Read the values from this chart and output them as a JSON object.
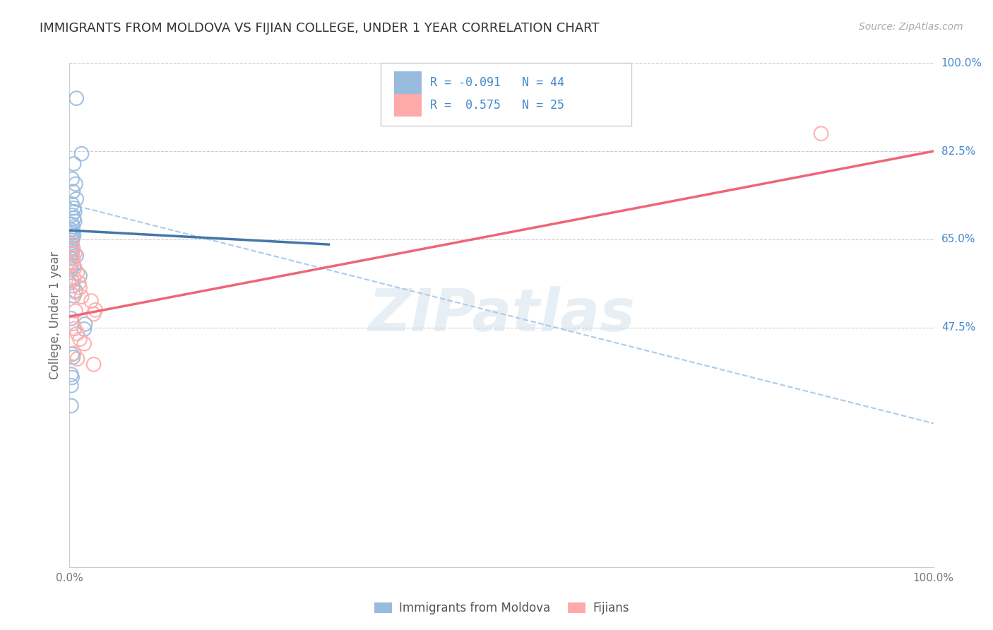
{
  "title": "IMMIGRANTS FROM MOLDOVA VS FIJIAN COLLEGE, UNDER 1 YEAR CORRELATION CHART",
  "source": "Source: ZipAtlas.com",
  "ylabel": "College, Under 1 year",
  "xlim": [
    0.0,
    1.0
  ],
  "ylim": [
    0.0,
    1.0
  ],
  "ytick_labels_right": [
    "100.0%",
    "82.5%",
    "65.0%",
    "47.5%"
  ],
  "ytick_positions_right": [
    1.0,
    0.825,
    0.65,
    0.475
  ],
  "color_blue": "#99BBDD",
  "color_pink": "#FFAAAA",
  "color_blue_line": "#4477AA",
  "color_pink_line": "#EE6677",
  "color_dashed": "#AACCEE",
  "title_color": "#333333",
  "right_tick_color": "#4488CC",
  "blue_scatter": [
    [
      0.008,
      0.93
    ],
    [
      0.014,
      0.82
    ],
    [
      0.005,
      0.8
    ],
    [
      0.003,
      0.77
    ],
    [
      0.007,
      0.76
    ],
    [
      0.004,
      0.745
    ],
    [
      0.008,
      0.73
    ],
    [
      0.003,
      0.72
    ],
    [
      0.005,
      0.712
    ],
    [
      0.006,
      0.705
    ],
    [
      0.003,
      0.698
    ],
    [
      0.005,
      0.692
    ],
    [
      0.006,
      0.686
    ],
    [
      0.003,
      0.68
    ],
    [
      0.004,
      0.675
    ],
    [
      0.002,
      0.669
    ],
    [
      0.003,
      0.663
    ],
    [
      0.005,
      0.658
    ],
    [
      0.004,
      0.653
    ],
    [
      0.003,
      0.648
    ],
    [
      0.002,
      0.643
    ],
    [
      0.003,
      0.638
    ],
    [
      0.004,
      0.633
    ],
    [
      0.002,
      0.628
    ],
    [
      0.003,
      0.623
    ],
    [
      0.008,
      0.618
    ],
    [
      0.002,
      0.612
    ],
    [
      0.003,
      0.605
    ],
    [
      0.005,
      0.598
    ],
    [
      0.002,
      0.59
    ],
    [
      0.012,
      0.578
    ],
    [
      0.003,
      0.568
    ],
    [
      0.004,
      0.558
    ],
    [
      0.007,
      0.548
    ],
    [
      0.005,
      0.538
    ],
    [
      0.002,
      0.493
    ],
    [
      0.018,
      0.482
    ],
    [
      0.017,
      0.472
    ],
    [
      0.003,
      0.422
    ],
    [
      0.004,
      0.416
    ],
    [
      0.002,
      0.382
    ],
    [
      0.003,
      0.376
    ],
    [
      0.002,
      0.36
    ],
    [
      0.002,
      0.32
    ]
  ],
  "pink_scatter": [
    [
      0.003,
      0.64
    ],
    [
      0.004,
      0.63
    ],
    [
      0.006,
      0.622
    ],
    [
      0.004,
      0.613
    ],
    [
      0.003,
      0.604
    ],
    [
      0.006,
      0.594
    ],
    [
      0.009,
      0.584
    ],
    [
      0.005,
      0.574
    ],
    [
      0.011,
      0.564
    ],
    [
      0.012,
      0.554
    ],
    [
      0.007,
      0.545
    ],
    [
      0.014,
      0.536
    ],
    [
      0.025,
      0.528
    ],
    [
      0.007,
      0.508
    ],
    [
      0.028,
      0.502
    ],
    [
      0.004,
      0.483
    ],
    [
      0.006,
      0.473
    ],
    [
      0.009,
      0.463
    ],
    [
      0.012,
      0.452
    ],
    [
      0.017,
      0.443
    ],
    [
      0.005,
      0.424
    ],
    [
      0.009,
      0.413
    ],
    [
      0.028,
      0.402
    ],
    [
      0.03,
      0.51
    ],
    [
      0.87,
      0.86
    ]
  ],
  "blue_line_x": [
    0.0,
    0.3
  ],
  "blue_line_y": [
    0.668,
    0.64
  ],
  "pink_line_x": [
    0.0,
    1.0
  ],
  "pink_line_y": [
    0.497,
    0.825
  ],
  "dashed_line_x": [
    0.0,
    1.0
  ],
  "dashed_line_y": [
    0.72,
    0.285
  ]
}
